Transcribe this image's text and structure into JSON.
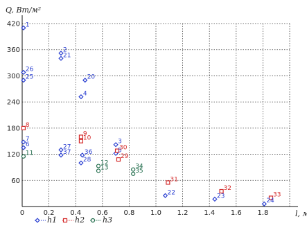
{
  "chart_data": {
    "type": "scatter",
    "ylabel": "Q, Вт/м²",
    "xlabel": "l, м",
    "xlim": [
      0,
      2.0
    ],
    "ylim": [
      0,
      420
    ],
    "x_ticks": [
      "0",
      "0.2",
      "0.4",
      "0.6",
      "0.8",
      "1.0",
      "1.2",
      "1.4",
      "1.6",
      "1.8"
    ],
    "y_ticks": [
      "60",
      "120",
      "180",
      "240",
      "300",
      "360",
      "420"
    ],
    "grid": true,
    "legend_position": "bottom-left",
    "colors": {
      "h1": "#2a3fd1",
      "h2": "#d42a2a",
      "h3": "#1f6b4a"
    },
    "series": [
      {
        "name": "h1",
        "marker": "diamond",
        "points": [
          {
            "label": "1",
            "x": 0.01,
            "y": 410
          },
          {
            "label": "2",
            "x": 0.29,
            "y": 352
          },
          {
            "label": "21",
            "x": 0.29,
            "y": 340
          },
          {
            "label": "26",
            "x": 0.01,
            "y": 308
          },
          {
            "label": "25",
            "x": 0.01,
            "y": 290
          },
          {
            "label": "20",
            "x": 0.47,
            "y": 290
          },
          {
            "label": "4",
            "x": 0.44,
            "y": 252
          },
          {
            "label": "7",
            "x": 0.01,
            "y": 148
          },
          {
            "label": "6",
            "x": 0.01,
            "y": 135
          },
          {
            "label": "27",
            "x": 0.29,
            "y": 130
          },
          {
            "label": "37",
            "x": 0.29,
            "y": 118
          },
          {
            "label": "36",
            "x": 0.45,
            "y": 118
          },
          {
            "label": "28",
            "x": 0.44,
            "y": 100
          },
          {
            "label": "3",
            "x": 0.7,
            "y": 142
          },
          {
            "label": "5",
            "x": 0.7,
            "y": 122
          },
          {
            "label": "22",
            "x": 1.07,
            "y": 25
          },
          {
            "label": "23",
            "x": 1.44,
            "y": 17
          },
          {
            "label": "24",
            "x": 1.81,
            "y": 6
          }
        ]
      },
      {
        "name": "h2",
        "marker": "square",
        "points": [
          {
            "label": "8",
            "x": 0.01,
            "y": 180
          },
          {
            "label": "9",
            "x": 0.44,
            "y": 160
          },
          {
            "label": "10",
            "x": 0.44,
            "y": 150
          },
          {
            "label": "30",
            "x": 0.71,
            "y": 128
          },
          {
            "label": "29",
            "x": 0.72,
            "y": 108
          },
          {
            "label": "31",
            "x": 1.09,
            "y": 55
          },
          {
            "label": "32",
            "x": 1.49,
            "y": 35
          },
          {
            "label": "33",
            "x": 1.86,
            "y": 20
          }
        ]
      },
      {
        "name": "h3",
        "marker": "circle",
        "points": [
          {
            "label": "11",
            "x": 0.01,
            "y": 115
          },
          {
            "label": "12",
            "x": 0.57,
            "y": 93
          },
          {
            "label": "13",
            "x": 0.57,
            "y": 82
          },
          {
            "label": "34",
            "x": 0.83,
            "y": 85
          },
          {
            "label": "35",
            "x": 0.83,
            "y": 75
          }
        ]
      }
    ]
  }
}
